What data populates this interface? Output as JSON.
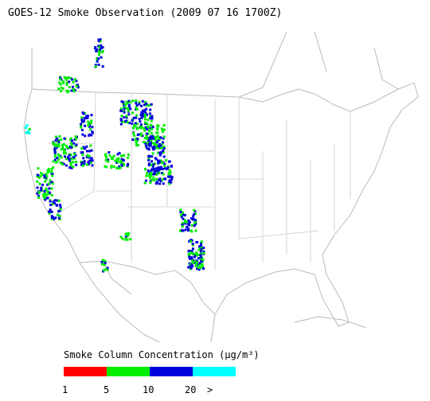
{
  "title": "GOES-12 Smoke Observation (2009 07 16  1700Z)",
  "legend": {
    "title": "Smoke Column Concentration (μg/m³)",
    "labels": [
      "1",
      "5",
      "10",
      "20",
      ">"
    ],
    "colors": [
      "#ff0000",
      "#00ee00",
      "#0000dd",
      "#00ffff"
    ]
  }
}
